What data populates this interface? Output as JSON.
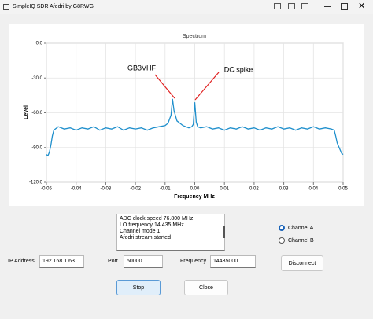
{
  "window": {
    "title": "SimpleIQ SDR Afedri by G8RWG"
  },
  "chart_data": {
    "type": "line",
    "title": "Spectrum",
    "x_label": "Frequency MHz",
    "y_label": "Level",
    "x": [
      -0.05,
      -0.0495,
      -0.049,
      -0.0485,
      -0.048,
      -0.0475,
      -0.047,
      -0.046,
      -0.044,
      -0.042,
      -0.04,
      -0.038,
      -0.036,
      -0.034,
      -0.032,
      -0.03,
      -0.028,
      -0.026,
      -0.024,
      -0.022,
      -0.02,
      -0.018,
      -0.016,
      -0.014,
      -0.012,
      -0.01,
      -0.009,
      -0.008,
      -0.0075,
      -0.007,
      -0.006,
      -0.005,
      -0.004,
      -0.003,
      -0.002,
      -0.001,
      -0.0005,
      0,
      0.0005,
      0.001,
      0.002,
      0.004,
      0.006,
      0.008,
      0.01,
      0.012,
      0.014,
      0.016,
      0.018,
      0.02,
      0.022,
      0.024,
      0.026,
      0.028,
      0.03,
      0.032,
      0.034,
      0.036,
      0.038,
      0.04,
      0.042,
      0.044,
      0.046,
      0.047,
      0.0475,
      0.048,
      0.049,
      0.0495,
      0.05
    ],
    "series": [
      {
        "color": "#1f8fcc",
        "values": [
          -96,
          -97,
          -94,
          -88,
          -80,
          -75,
          -74,
          -72,
          -74,
          -73,
          -75,
          -73,
          -74,
          -72,
          -75,
          -73,
          -74,
          -72,
          -75,
          -73,
          -74,
          -73,
          -75,
          -73,
          -72,
          -71,
          -69,
          -62,
          -48,
          -58,
          -67,
          -69,
          -71,
          -72,
          -73,
          -72,
          -70,
          -51,
          -68,
          -72,
          -73,
          -72,
          -74,
          -73,
          -75,
          -73,
          -74,
          -72,
          -74,
          -73,
          -75,
          -73,
          -74,
          -72,
          -74,
          -73,
          -75,
          -73,
          -74,
          -72,
          -74,
          -73,
          -74,
          -75,
          -80,
          -86,
          -92,
          -95,
          -96
        ]
      }
    ],
    "xlim": [
      -0.05,
      0.05
    ],
    "ylim": [
      -120,
      0
    ],
    "xticks": [
      -0.05,
      -0.04,
      -0.03,
      -0.02,
      -0.01,
      {
        "value": 0,
        "label": "0.00"
      },
      0.01,
      0.02,
      0.03,
      0.04,
      0.05
    ],
    "yticks": [
      {
        "value": 0,
        "label": "0.0"
      },
      {
        "value": -30,
        "label": "-30.0"
      },
      {
        "value": -60,
        "label": "-60.0"
      },
      {
        "value": -90,
        "label": "-90.0"
      },
      {
        "value": -120,
        "label": "-120.0"
      }
    ],
    "grid": true,
    "annotations": [
      {
        "text": "GB3VHF",
        "color": "#e02020"
      },
      {
        "text": "DC spike",
        "color": "#e02020"
      }
    ]
  },
  "log": {
    "lines": [
      "ADC clock speed 76.800 MHz",
      "LO frequency 14.435 MHz",
      "Channel mode 1",
      "Afedri stream started"
    ]
  },
  "channels": [
    {
      "label": "Channel A",
      "checked": true
    },
    {
      "label": "Channel B",
      "checked": false
    }
  ],
  "fields": {
    "ip_label": "IP Address",
    "ip_value": "192.168.1.63",
    "port_label": "Port",
    "port_value": "50000",
    "freq_label": "Frequency",
    "freq_value": "14435000"
  },
  "buttons": {
    "disconnect": "Disconnect",
    "stop": "Stop",
    "close": "Close"
  }
}
